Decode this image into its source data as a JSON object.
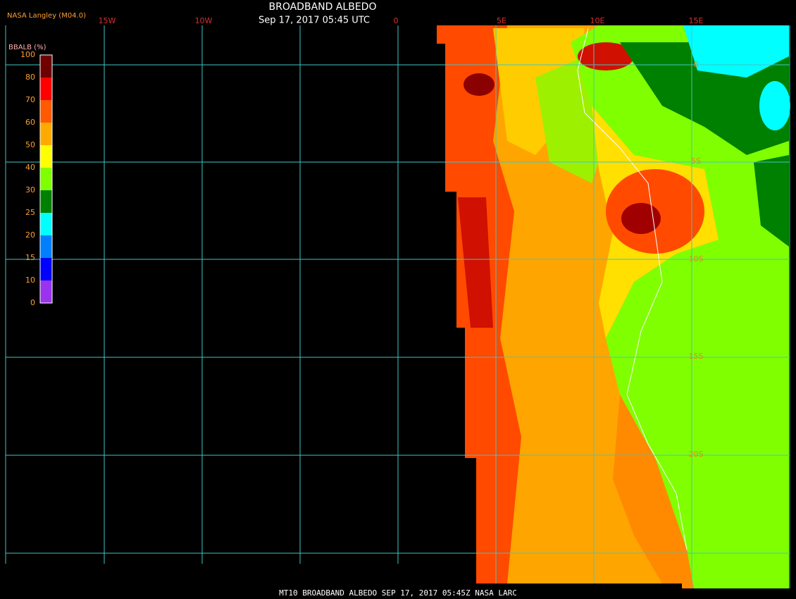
{
  "header": {
    "title": "BROADBAND ALBEDO",
    "subtitle": "Sep 17, 2017 05:45 UTC",
    "source": "NASA Langley (M04.0)"
  },
  "legend": {
    "title": "BBALB (%)",
    "labels": [
      "100",
      "80",
      "70",
      "60",
      "50",
      "40",
      "30",
      "25",
      "20",
      "15",
      "10",
      "0"
    ],
    "colors": [
      "#6e0000",
      "#ff0000",
      "#ff5a00",
      "#ffaa00",
      "#ffff00",
      "#80ff00",
      "#008000",
      "#00ffff",
      "#0080ff",
      "#0000ff",
      "#9933ee"
    ]
  },
  "grid": {
    "longitudes": [
      "15W",
      "10W",
      "0",
      "5E",
      "10E",
      "15E"
    ],
    "latitudes": [
      "0",
      "5S",
      "10S",
      "15S",
      "20S"
    ]
  },
  "footer": {
    "text": "MT10  BROADBAND ALBEDO   SEP 17, 2017 05:45Z   NASA LARC"
  }
}
